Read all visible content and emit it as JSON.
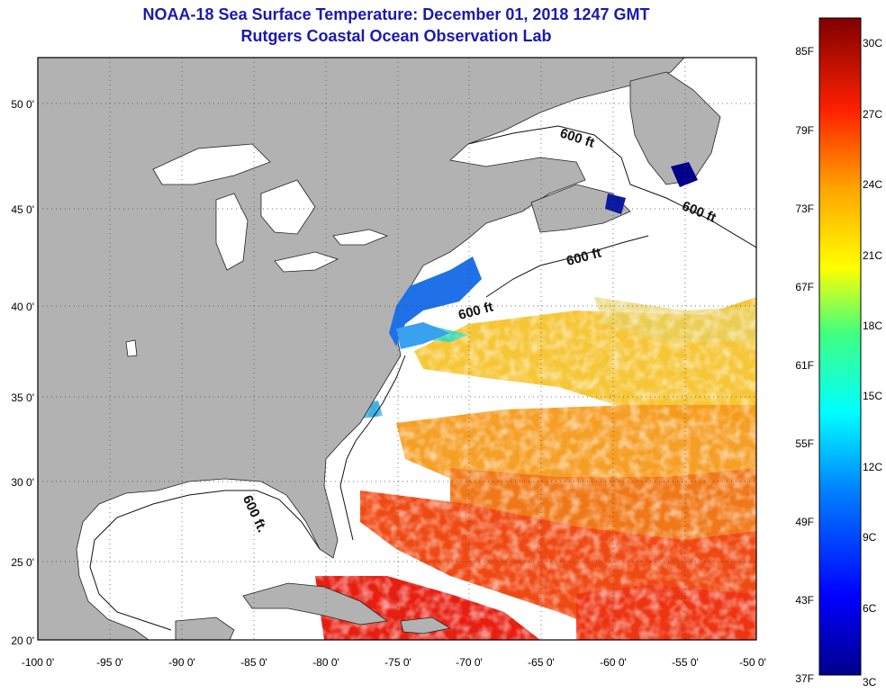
{
  "title": "NOAA-18 Sea Surface Temperature:  December 01, 2018 1247 GMT",
  "subtitle": "Rutgers Coastal Ocean Observation Lab",
  "lon_ticks": [
    "-100 0'",
    "-95 0'",
    "-90 0'",
    "-85 0'",
    "-80 0'",
    "-75 0'",
    "-70 0'",
    "-65 0'",
    "-60 0'",
    "-55 0'",
    "-50 0'"
  ],
  "lat_ticks": [
    "50 0'",
    "45 0'",
    "40 0'",
    "35 0'",
    "30 0'",
    "25 0'",
    "20 0'"
  ],
  "contour_label": "600 ft",
  "contour_label_alt": "600 ft.",
  "colorbar": {
    "f_labels": [
      "85F",
      "79F",
      "73F",
      "67F",
      "61F",
      "55F",
      "49F",
      "43F",
      "37F"
    ],
    "c_labels": [
      "30C",
      "27C",
      "24C",
      "21C",
      "18C",
      "15C",
      "12C",
      "9C",
      "6C",
      "3C"
    ]
  },
  "colors": {
    "land": "#b2b2b2",
    "title": "#1a1ab0",
    "cold": "#00008b",
    "warm": "#ff0000",
    "hot": "#800000"
  }
}
